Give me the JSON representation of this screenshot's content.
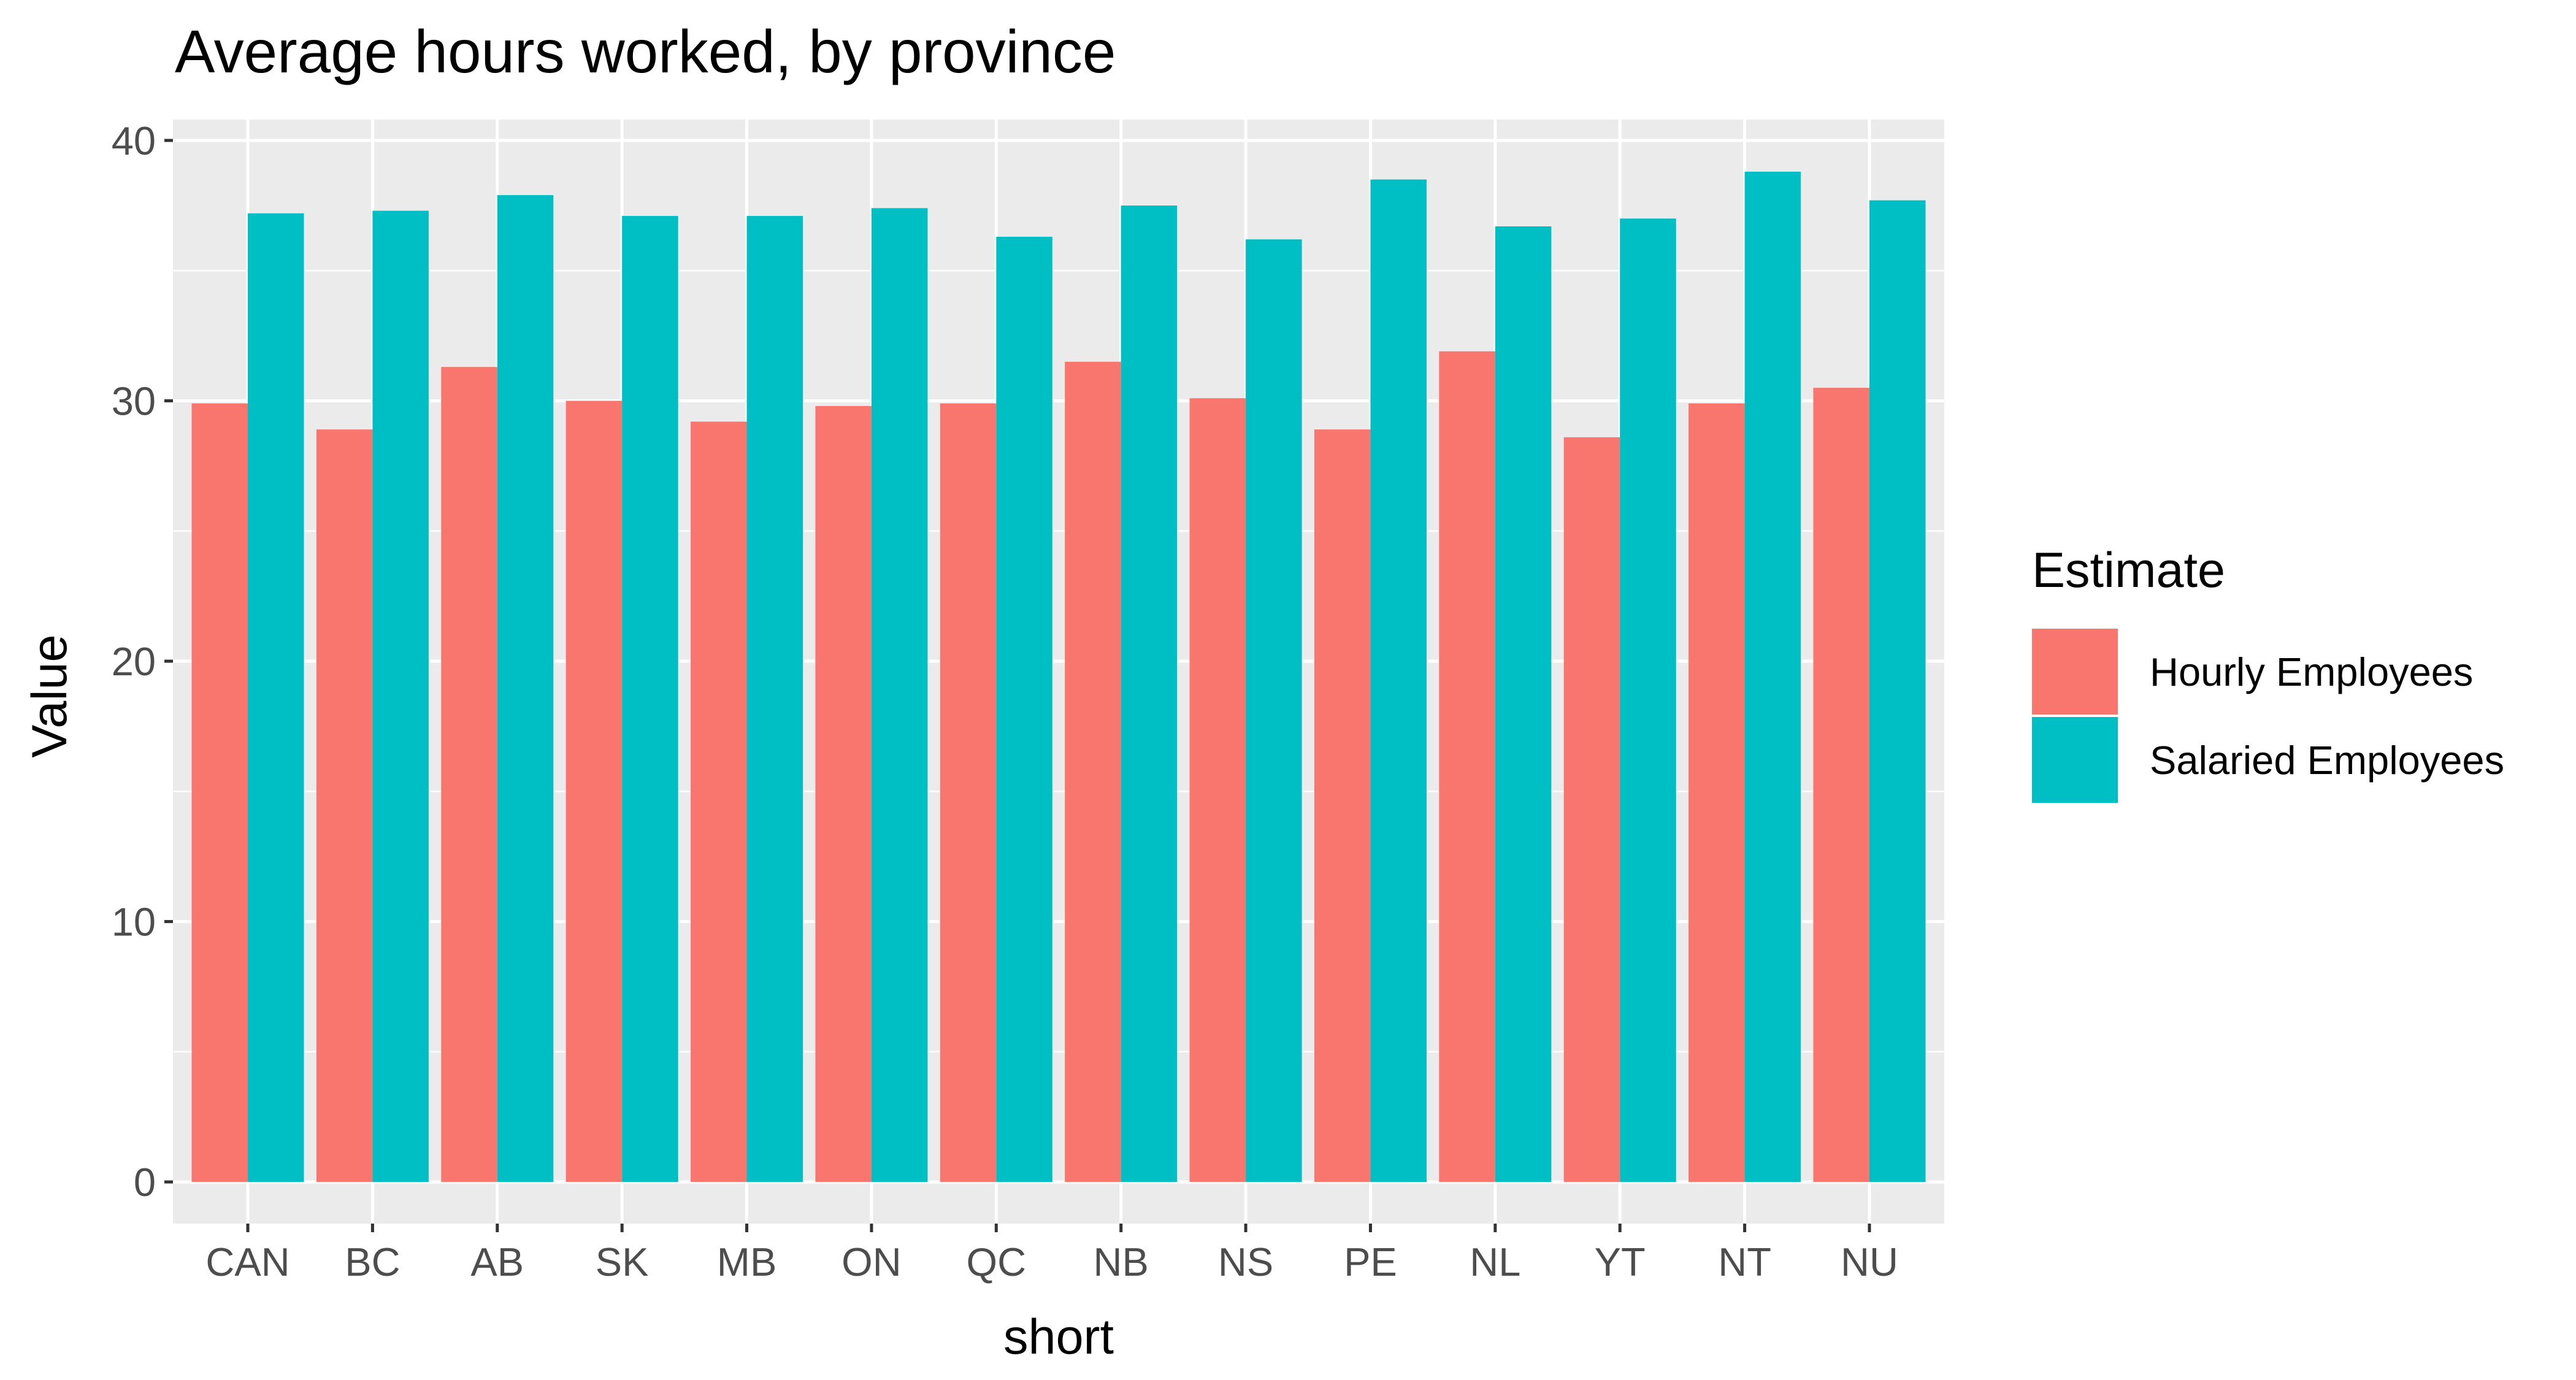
{
  "chart_data": {
    "type": "bar",
    "title": "Average hours worked, by province",
    "xlabel": "short",
    "ylabel": "Value",
    "ylim": [
      -1.6,
      40.8
    ],
    "yticks": [
      0,
      10,
      20,
      30,
      40
    ],
    "grid": true,
    "legend_position": "right",
    "legend_title": "Estimate",
    "categories": [
      "CAN",
      "BC",
      "AB",
      "SK",
      "MB",
      "ON",
      "QC",
      "NB",
      "NS",
      "PE",
      "NL",
      "YT",
      "NT",
      "NU"
    ],
    "series": [
      {
        "name": "Hourly Employees",
        "color": "#F8766D",
        "values": [
          29.9,
          28.9,
          31.3,
          30.0,
          29.2,
          29.8,
          29.9,
          31.5,
          30.1,
          28.9,
          31.9,
          28.6,
          29.9,
          30.5
        ]
      },
      {
        "name": "Salaried Employees",
        "color": "#00BFC4",
        "values": [
          37.2,
          37.3,
          37.9,
          37.1,
          37.1,
          37.4,
          36.3,
          37.5,
          36.2,
          38.5,
          36.7,
          37.0,
          38.8,
          37.7
        ]
      }
    ]
  },
  "colors": {
    "panel_background": "#EBEBEB",
    "grid_line": "#FFFFFF"
  }
}
